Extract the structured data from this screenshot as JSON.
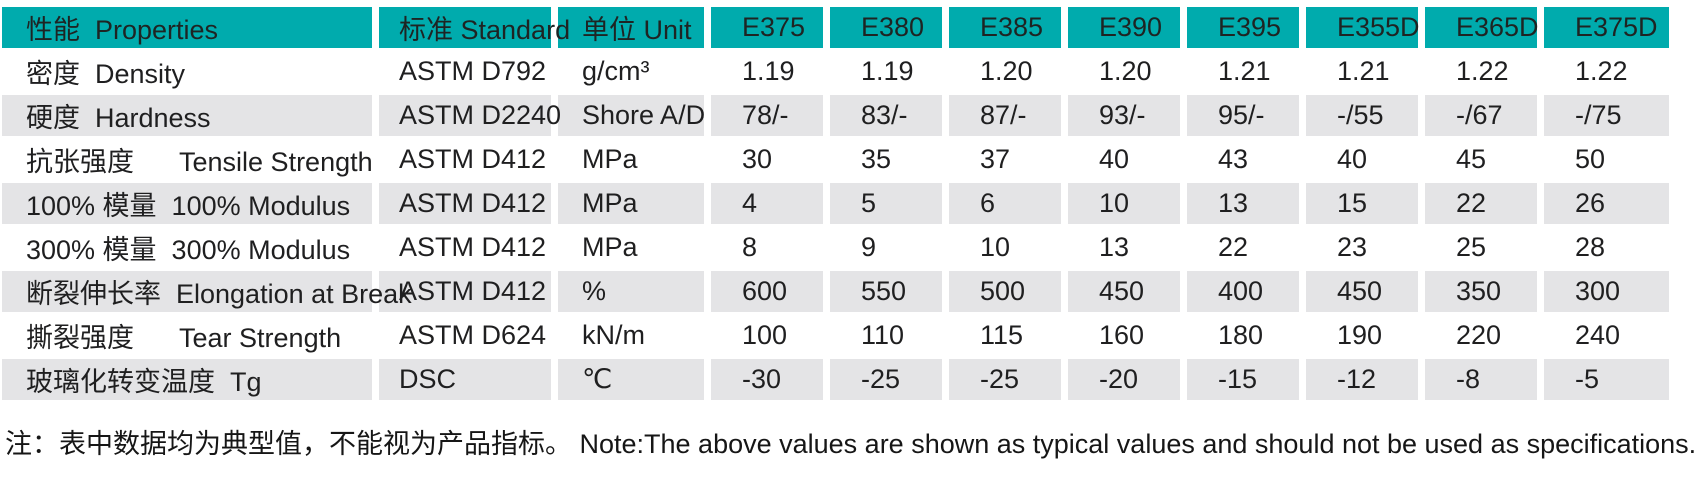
{
  "colors": {
    "header_bg": "#00abad",
    "row_alt_bg": "#e4e4e6",
    "text": "#1f1f20"
  },
  "table": {
    "headers": [
      {
        "id": "properties",
        "label": "性能  Properties"
      },
      {
        "id": "standard",
        "label": "标准 Standard"
      },
      {
        "id": "unit",
        "label": "单位 Unit"
      },
      {
        "id": "e375",
        "label": "E375"
      },
      {
        "id": "e380",
        "label": "E380"
      },
      {
        "id": "e385",
        "label": "E385"
      },
      {
        "id": "e390",
        "label": "E390"
      },
      {
        "id": "e395",
        "label": "E395"
      },
      {
        "id": "e355d",
        "label": "E355D"
      },
      {
        "id": "e365d",
        "label": "E365D"
      },
      {
        "id": "e375d",
        "label": "E375D"
      }
    ],
    "rows": [
      {
        "property": "密度  Density",
        "standard": "ASTM D792",
        "unit": "g/cm³",
        "values": [
          "1.19",
          "1.19",
          "1.20",
          "1.20",
          "1.21",
          "1.21",
          "1.22",
          "1.22"
        ]
      },
      {
        "property": "硬度  Hardness",
        "standard": "ASTM D2240",
        "unit": "Shore A/D",
        "values": [
          "78/-",
          "83/-",
          "87/-",
          "93/-",
          "95/-",
          "-/55",
          "-/67",
          "-/75"
        ]
      },
      {
        "property": "抗张强度      Tensile Strength",
        "standard": "ASTM D412",
        "unit": "MPa",
        "values": [
          "30",
          "35",
          "37",
          "40",
          "43",
          "40",
          "45",
          "50"
        ]
      },
      {
        "property": "100% 模量  100% Modulus",
        "standard": "ASTM D412",
        "unit": "MPa",
        "values": [
          "4",
          "5",
          "6",
          "10",
          "13",
          "15",
          "22",
          "26"
        ]
      },
      {
        "property": "300% 模量  300% Modulus",
        "standard": "ASTM D412",
        "unit": "MPa",
        "values": [
          "8",
          "9",
          "10",
          "13",
          "22",
          "23",
          "25",
          "28"
        ]
      },
      {
        "property": "断裂伸长率  Elongation at Break",
        "standard": "ASTM D412",
        "unit": "%",
        "values": [
          "600",
          "550",
          "500",
          "450",
          "400",
          "450",
          "350",
          "300"
        ]
      },
      {
        "property": "撕裂强度      Tear Strength",
        "standard": "ASTM D624",
        "unit": "kN/m",
        "values": [
          "100",
          "110",
          "115",
          "160",
          "180",
          "190",
          "220",
          "240"
        ]
      },
      {
        "property": "玻璃化转变温度  Tg",
        "standard": "DSC",
        "unit": "℃",
        "values": [
          "-30",
          "-25",
          "-25",
          "-20",
          "-15",
          "-12",
          "-8",
          "-5"
        ]
      }
    ]
  },
  "note": "注：表中数据均为典型值，不能视为产品指标。 Note:The above values are shown as typical values and should not be used as specifications."
}
